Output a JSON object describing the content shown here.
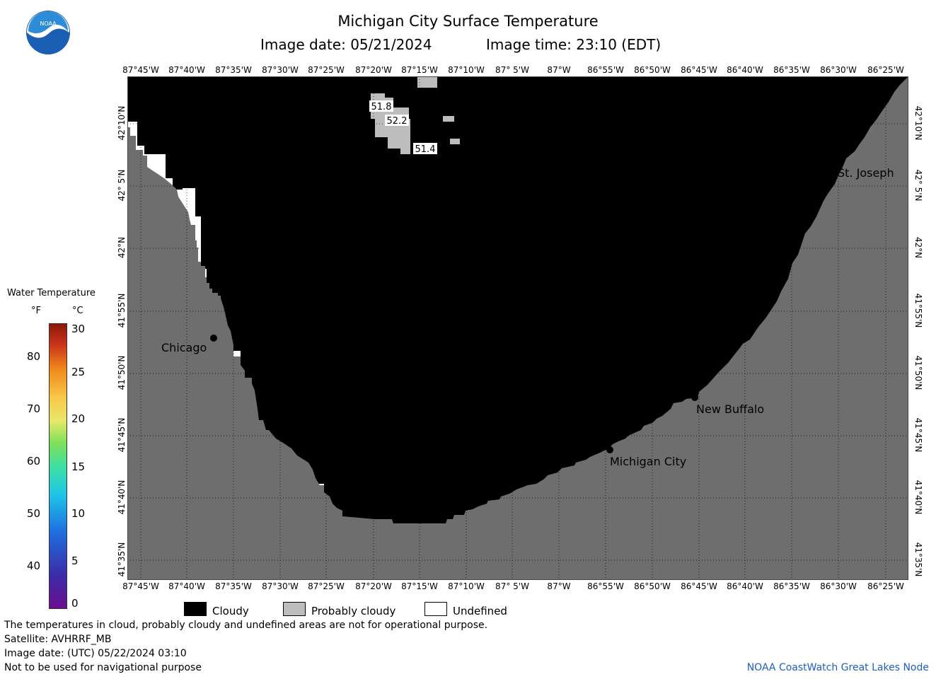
{
  "header": {
    "title": "Michigan City Surface Temperature",
    "image_date": "Image date: 05/21/2024",
    "image_time": "Image time: 23:10 (EDT)"
  },
  "logo_text": "NOAA",
  "lon_labels": [
    "87°45'W",
    "87°40'W",
    "87°35'W",
    "87°30'W",
    "87°25'W",
    "87°20'W",
    "87°15'W",
    "87°10'W",
    "87° 5'W",
    "87°W",
    "86°55'W",
    "86°50'W",
    "86°45'W",
    "86°40'W",
    "86°35'W",
    "86°30'W",
    "86°25'W"
  ],
  "lat_labels": [
    "42°10'N",
    "42° 5'N",
    "42°N",
    "41°55'N",
    "41°50'N",
    "41°45'N",
    "41°40'N",
    "41°35'N"
  ],
  "cities": [
    {
      "name": "Chicago"
    },
    {
      "name": "Michigan City"
    },
    {
      "name": "New Buffalo"
    },
    {
      "name": "St. Joseph"
    }
  ],
  "temps": [
    "51.8",
    "52.2",
    "51.4"
  ],
  "scale": {
    "title": "Water Temperature",
    "unit_f": "°F",
    "unit_c": "°C",
    "f_ticks": [
      "80",
      "70",
      "60",
      "50",
      "40"
    ],
    "c_ticks": [
      "30",
      "25",
      "20",
      "15",
      "10",
      "5",
      "0"
    ]
  },
  "legend": {
    "cloudy": "Cloudy",
    "probably_cloudy": "Probably cloudy",
    "undefined": "Undefined"
  },
  "footer": {
    "line1": "The temperatures in cloud, probably cloudy and undefined areas are not for operational purpose.",
    "line2": "Satellite: AVHRRF_MB",
    "line3": "Image date: (UTC) 05/22/2024  03:10",
    "line4": "Not to be used for navigational purpose",
    "credit": "NOAA CoastWatch Great Lakes Node"
  },
  "colors": {
    "cloudy": "#000000",
    "probably_cloudy": "#bdbdbd",
    "land": "#6e6e6e",
    "undefined": "#ffffff",
    "credit": "#1f5fbf"
  }
}
